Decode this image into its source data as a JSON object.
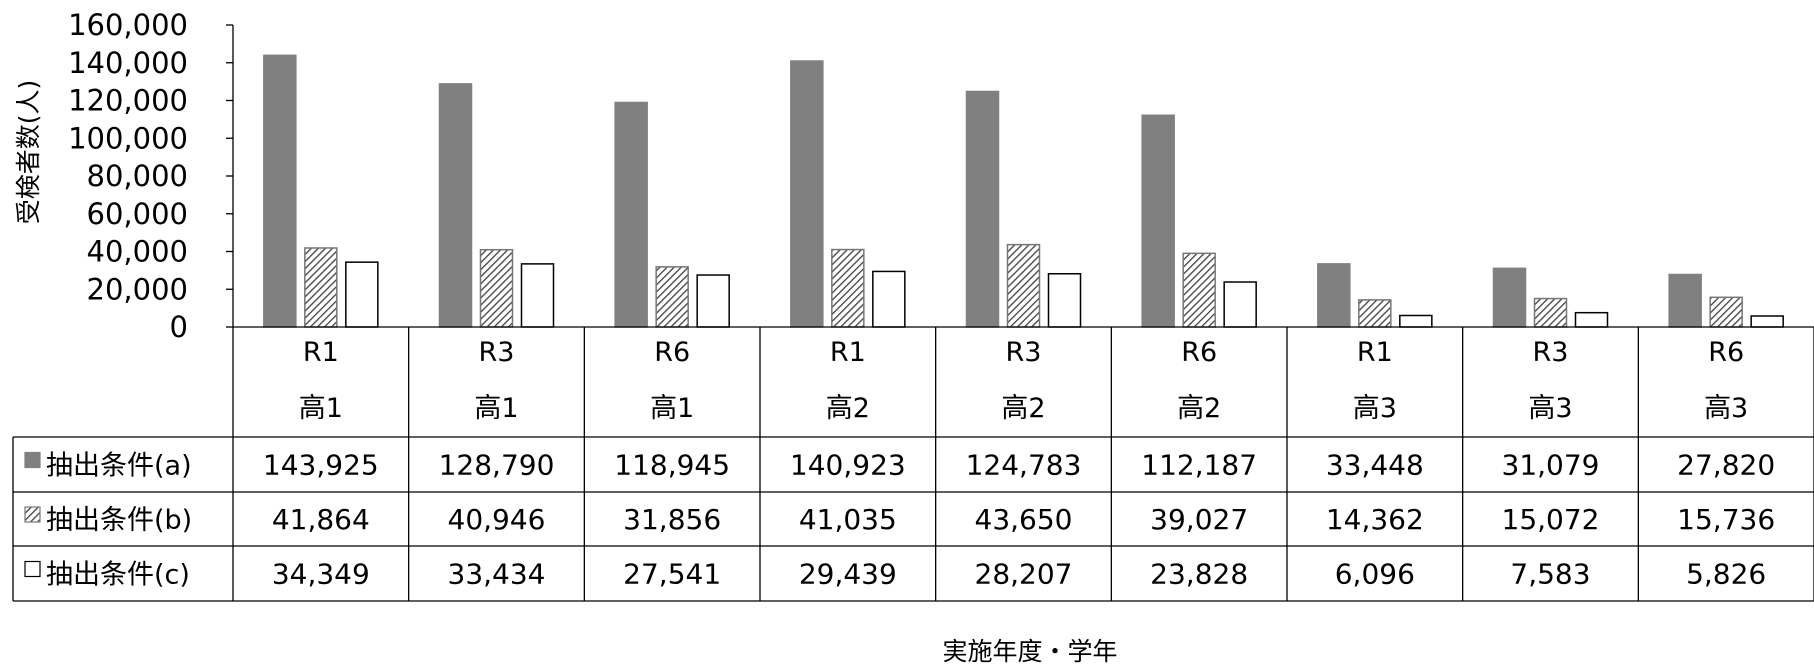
{
  "chart_data": {
    "type": "bar",
    "ylabel": "受検者数(人)",
    "xlabel": "実施年度・学年",
    "ylim": [
      0,
      160000
    ],
    "yticks": [
      "0",
      "20,000",
      "40,000",
      "60,000",
      "80,000",
      "100,000",
      "120,000",
      "140,000",
      "160,000"
    ],
    "ytick_values": [
      0,
      20000,
      40000,
      60000,
      80000,
      100000,
      120000,
      140000,
      160000
    ],
    "years": [
      "R1",
      "R3",
      "R6",
      "R1",
      "R3",
      "R6",
      "R1",
      "R3",
      "R6"
    ],
    "grades": [
      "高1",
      "高1",
      "高1",
      "高2",
      "高2",
      "高2",
      "高3",
      "高3",
      "高3"
    ],
    "grid": false,
    "legend": "data-table",
    "series": [
      {
        "name": "抽出条件(a)",
        "pattern": "solid",
        "color": "#808080",
        "values": [
          143925,
          128790,
          118945,
          140923,
          124783,
          112187,
          33448,
          31079,
          27820
        ],
        "labels": [
          "143,925",
          "128,790",
          "118,945",
          "140,923",
          "124,783",
          "112,187",
          "33,448",
          "31,079",
          "27,820"
        ]
      },
      {
        "name": "抽出条件(b)",
        "pattern": "hatch",
        "color": "#404040",
        "values": [
          41864,
          40946,
          31856,
          41035,
          43650,
          39027,
          14362,
          15072,
          15736
        ],
        "labels": [
          "41,864",
          "40,946",
          "31,856",
          "41,035",
          "43,650",
          "39,027",
          "14,362",
          "15,072",
          "15,736"
        ]
      },
      {
        "name": "抽出条件(c)",
        "pattern": "outline",
        "color": "#000000",
        "values": [
          34349,
          33434,
          27541,
          29439,
          28207,
          23828,
          6096,
          7583,
          5826
        ],
        "labels": [
          "34,349",
          "33,434",
          "27,541",
          "29,439",
          "28,207",
          "23,828",
          "6,096",
          "7,583",
          "5,826"
        ]
      }
    ]
  }
}
